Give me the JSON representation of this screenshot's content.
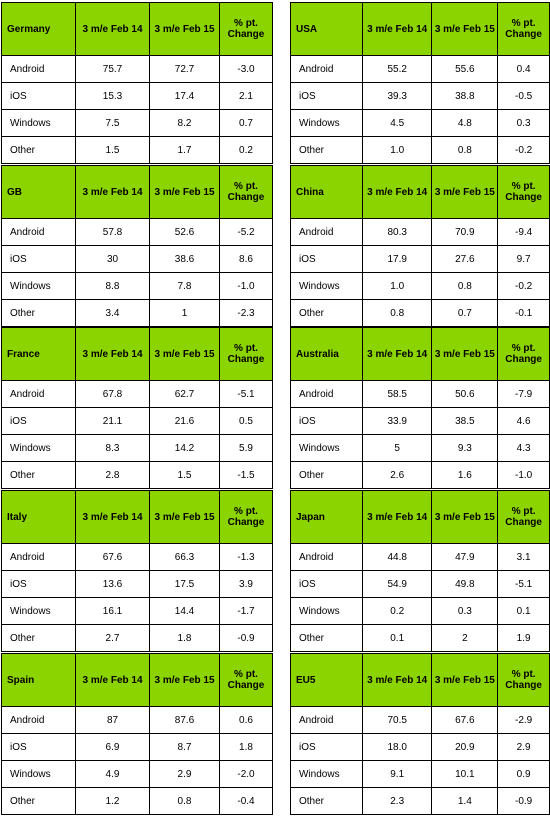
{
  "header": {
    "period1": "3 m/e Feb 14",
    "period2": "3 m/e Feb 15",
    "change": "% pt. Change"
  },
  "row_labels": [
    "Android",
    "iOS",
    "Windows",
    "Other"
  ],
  "panels": [
    {
      "country": "Germany",
      "rows": [
        [
          "75.7",
          "72.7",
          "-3.0"
        ],
        [
          "15.3",
          "17.4",
          "2.1"
        ],
        [
          "7.5",
          "8.2",
          "0.7"
        ],
        [
          "1.5",
          "1.7",
          "0.2"
        ]
      ]
    },
    {
      "country": "USA",
      "rows": [
        [
          "55.2",
          "55.6",
          "0.4"
        ],
        [
          "39.3",
          "38.8",
          "-0.5"
        ],
        [
          "4.5",
          "4.8",
          "0.3"
        ],
        [
          "1.0",
          "0.8",
          "-0.2"
        ]
      ]
    },
    {
      "country": "GB",
      "rows": [
        [
          "57.8",
          "52.6",
          "-5.2"
        ],
        [
          "30",
          "38.6",
          "8.6"
        ],
        [
          "8.8",
          "7.8",
          "-1.0"
        ],
        [
          "3.4",
          "1",
          "-2.3"
        ]
      ]
    },
    {
      "country": "China",
      "rows": [
        [
          "80.3",
          "70.9",
          "-9.4"
        ],
        [
          "17.9",
          "27.6",
          "9.7"
        ],
        [
          "1.0",
          "0.8",
          "-0.2"
        ],
        [
          "0.8",
          "0.7",
          "-0.1"
        ]
      ]
    },
    {
      "country": "France",
      "rows": [
        [
          "67.8",
          "62.7",
          "-5.1"
        ],
        [
          "21.1",
          "21.6",
          "0.5"
        ],
        [
          "8.3",
          "14.2",
          "5.9"
        ],
        [
          "2.8",
          "1.5",
          "-1.5"
        ]
      ]
    },
    {
      "country": "Australia",
      "rows": [
        [
          "58.5",
          "50.6",
          "-7.9"
        ],
        [
          "33.9",
          "38.5",
          "4.6"
        ],
        [
          "5",
          "9.3",
          "4.3"
        ],
        [
          "2.6",
          "1.6",
          "-1.0"
        ]
      ]
    },
    {
      "country": "Italy",
      "rows": [
        [
          "67.6",
          "66.3",
          "-1.3"
        ],
        [
          "13.6",
          "17.5",
          "3.9"
        ],
        [
          "16.1",
          "14.4",
          "-1.7"
        ],
        [
          "2.7",
          "1.8",
          "-0.9"
        ]
      ]
    },
    {
      "country": "Japan",
      "rows": [
        [
          "44.8",
          "47.9",
          "3.1"
        ],
        [
          "54.9",
          "49.8",
          "-5.1"
        ],
        [
          "0.2",
          "0.3",
          "0.1"
        ],
        [
          "0.1",
          "2",
          "1.9"
        ]
      ]
    },
    {
      "country": "Spain",
      "rows": [
        [
          "87",
          "87.6",
          "0.6"
        ],
        [
          "6.9",
          "8.7",
          "1.8"
        ],
        [
          "4.9",
          "2.9",
          "-2.0"
        ],
        [
          "1.2",
          "0.8",
          "-0.4"
        ]
      ]
    },
    {
      "country": "EU5",
      "rows": [
        [
          "70.5",
          "67.6",
          "-2.9"
        ],
        [
          "18.0",
          "20.9",
          "2.9"
        ],
        [
          "9.1",
          "10.1",
          "0.9"
        ],
        [
          "2.3",
          "1.4",
          "-0.9"
        ]
      ]
    }
  ],
  "colors": {
    "header_fill": "#8cd400",
    "border": "#000000"
  }
}
